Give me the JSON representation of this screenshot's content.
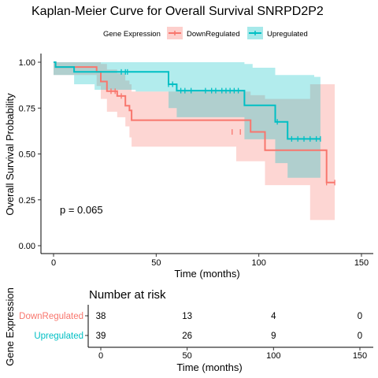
{
  "chart_data": [
    {
      "type": "line",
      "subtype": "kaplan-meier",
      "title": "Kaplan-Meier Curve for Overall Survival SNRPD2P2",
      "xlabel": "Time (months)",
      "ylabel": "Overall Survival Probability",
      "xlim": [
        0,
        150
      ],
      "ylim": [
        0,
        1
      ],
      "xticks": [
        "0",
        "50",
        "100",
        "150"
      ],
      "yticks": [
        "0.00",
        "0.25",
        "0.50",
        "0.75",
        "1.00"
      ],
      "legend": {
        "title": "Gene Expression",
        "position": "top"
      },
      "annotation": "p = 0.065",
      "grid": false,
      "series": [
        {
          "name": "DownRegulated",
          "color": "#F8766D",
          "band_color": "#F8766D",
          "steps": [
            [
              0,
              1.0
            ],
            [
              1,
              0.974
            ],
            [
              21,
              0.947
            ],
            [
              23,
              0.895
            ],
            [
              26,
              0.842
            ],
            [
              31,
              0.816
            ],
            [
              35,
              0.763
            ],
            [
              37,
              0.737
            ],
            [
              38,
              0.684
            ],
            [
              96,
              0.62
            ],
            [
              103,
              0.52
            ],
            [
              133,
              0.344
            ],
            [
              137,
              0.344
            ]
          ],
          "censor": [
            [
              28,
              0.842
            ],
            [
              30,
              0.842
            ],
            [
              33,
              0.816
            ],
            [
              35,
              0.79
            ],
            [
              87,
              0.62
            ],
            [
              91,
              0.62
            ],
            [
              133,
              0.344
            ],
            [
              137,
              0.344
            ]
          ],
          "ci_upper": [
            [
              0,
              1.0
            ],
            [
              1,
              1.0
            ],
            [
              21,
              1.0
            ],
            [
              23,
              0.99
            ],
            [
              26,
              0.96
            ],
            [
              31,
              0.94
            ],
            [
              35,
              0.9
            ],
            [
              37,
              0.88
            ],
            [
              38,
              0.84
            ],
            [
              96,
              0.82
            ],
            [
              103,
              0.8
            ],
            [
              123,
              0.8
            ],
            [
              125,
              0.88
            ],
            [
              137,
              0.88
            ]
          ],
          "ci_lower": [
            [
              0,
              0.93
            ],
            [
              1,
              0.93
            ],
            [
              21,
              0.87
            ],
            [
              23,
              0.8
            ],
            [
              26,
              0.73
            ],
            [
              31,
              0.7
            ],
            [
              35,
              0.65
            ],
            [
              37,
              0.59
            ],
            [
              38,
              0.54
            ],
            [
              89,
              0.46
            ],
            [
              96,
              0.46
            ],
            [
              103,
              0.33
            ],
            [
              125,
              0.14
            ],
            [
              137,
              0.14
            ]
          ]
        },
        {
          "name": "Upregulated",
          "color": "#00BFC4",
          "band_color": "#00BFC4",
          "steps": [
            [
              0,
              1.0
            ],
            [
              1,
              0.974
            ],
            [
              10,
              0.947
            ],
            [
              39,
              0.947
            ],
            [
              56,
              0.88
            ],
            [
              60,
              0.845
            ],
            [
              93,
              0.765
            ],
            [
              108,
              0.675
            ],
            [
              114,
              0.582
            ],
            [
              130,
              0.582
            ]
          ],
          "censor": [
            [
              33,
              0.947
            ],
            [
              35,
              0.947
            ],
            [
              36,
              0.947
            ],
            [
              56,
              0.88
            ],
            [
              58,
              0.88
            ],
            [
              62,
              0.845
            ],
            [
              64,
              0.845
            ],
            [
              67,
              0.845
            ],
            [
              74,
              0.845
            ],
            [
              77,
              0.845
            ],
            [
              79,
              0.845
            ],
            [
              82,
              0.845
            ],
            [
              84,
              0.845
            ],
            [
              86,
              0.845
            ],
            [
              88,
              0.845
            ],
            [
              90,
              0.845
            ],
            [
              109,
              0.675
            ],
            [
              116,
              0.582
            ],
            [
              119,
              0.582
            ],
            [
              122,
              0.582
            ],
            [
              125,
              0.582
            ],
            [
              128,
              0.582
            ],
            [
              130,
              0.582
            ]
          ],
          "ci_upper": [
            [
              0,
              1.0
            ],
            [
              27,
              1.0
            ],
            [
              40,
              1.0
            ],
            [
              80,
              1.0
            ],
            [
              93,
              0.99
            ],
            [
              97,
              0.97
            ],
            [
              108,
              0.93
            ],
            [
              127,
              0.92
            ],
            [
              130,
              0.92
            ]
          ],
          "ci_lower": [
            [
              0,
              0.93
            ],
            [
              10,
              0.88
            ],
            [
              20,
              0.85
            ],
            [
              26,
              0.85
            ],
            [
              40,
              0.84
            ],
            [
              56,
              0.75
            ],
            [
              60,
              0.7
            ],
            [
              93,
              0.58
            ],
            [
              108,
              0.45
            ],
            [
              114,
              0.37
            ],
            [
              130,
              0.37
            ]
          ]
        }
      ]
    },
    {
      "type": "table",
      "title": "Number at risk",
      "xlabel": "Time (months)",
      "ylabel": "Gene Expression",
      "xticks": [
        "0",
        "50",
        "100",
        "150"
      ],
      "columns": [
        0,
        50,
        100,
        150
      ],
      "rows": [
        {
          "name": "DownRegulated",
          "color": "#F8766D",
          "values": [
            "38",
            "13",
            "4",
            "0"
          ]
        },
        {
          "name": "Upregulated",
          "color": "#00BFC4",
          "values": [
            "39",
            "26",
            "9",
            "0"
          ]
        }
      ]
    }
  ]
}
